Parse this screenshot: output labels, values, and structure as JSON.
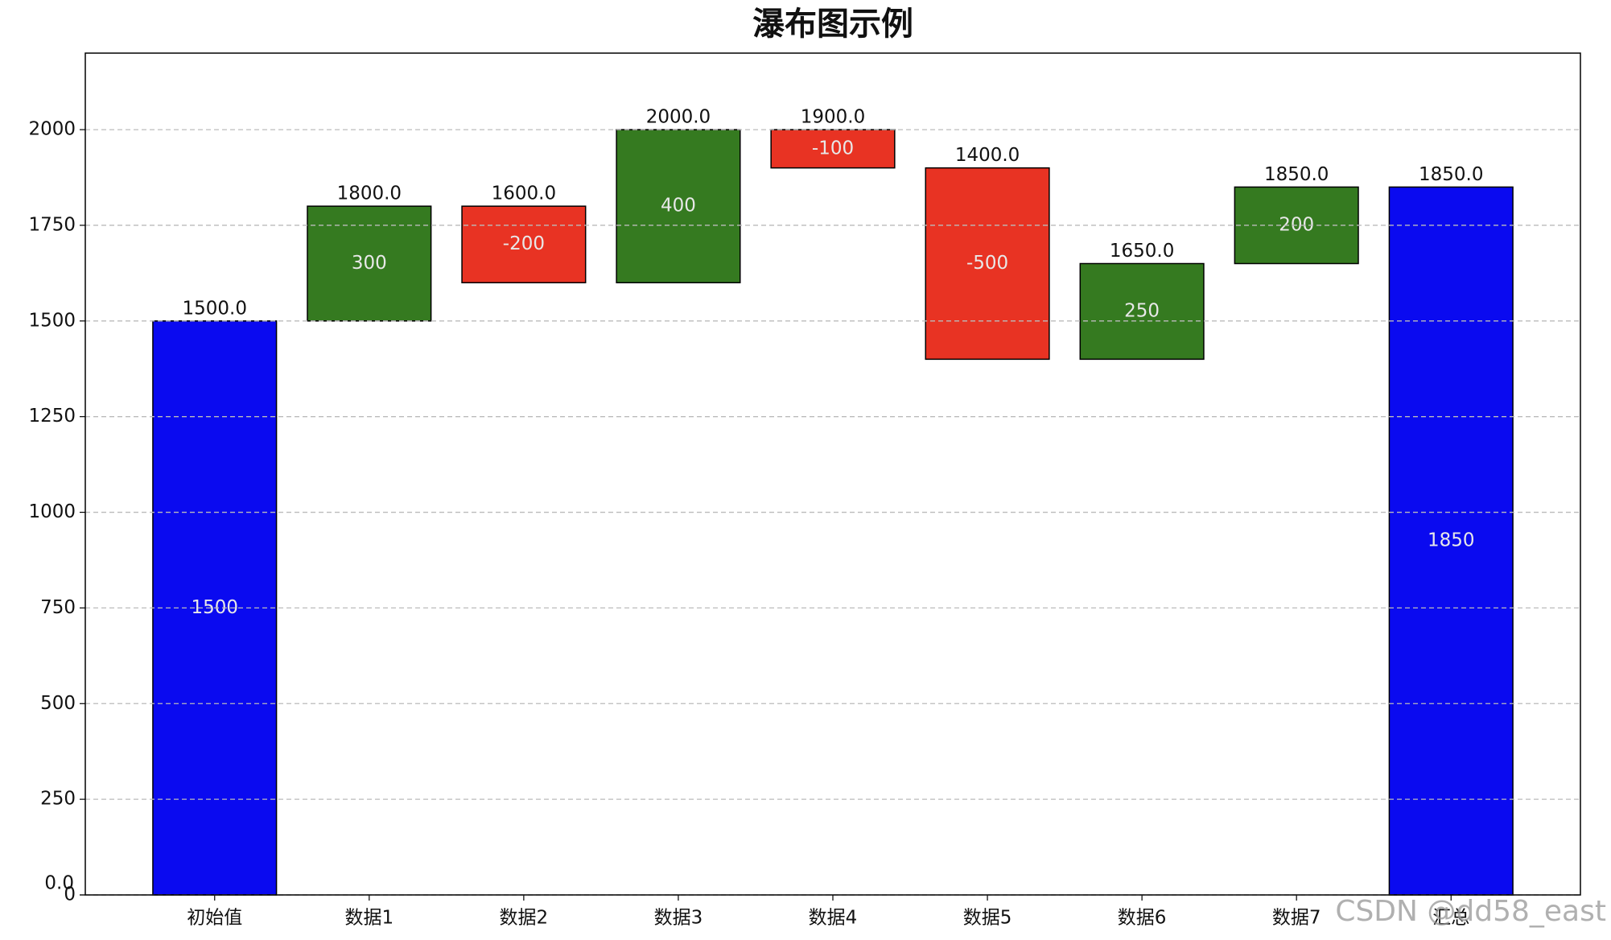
{
  "chart_data": {
    "type": "waterfall",
    "title": "瀑布图示例",
    "categories": [
      "初始值",
      "数据1",
      "数据2",
      "数据3",
      "数据4",
      "数据5",
      "数据6",
      "数据7",
      "汇总"
    ],
    "values": [
      1500,
      300,
      -200,
      400,
      -100,
      -500,
      250,
      200,
      1850
    ],
    "colors": [
      "#0a0af0",
      "#357a20",
      "#e83323",
      "#357a20",
      "#e83323",
      "#e83323",
      "#357a20",
      "#357a20",
      "#0a0af0"
    ],
    "top_labels": [
      "1500.0",
      "1800.0",
      "1600.0",
      "2000.0",
      "1900.0",
      "1400.0",
      "1650.0",
      "1850.0",
      "1850.0"
    ],
    "ylim": [
      0,
      2200
    ],
    "yticks": [
      0,
      {
        "value": 0,
        "label": "0.0"
      },
      250,
      500,
      750,
      1000,
      1250,
      1500,
      1750,
      2000
    ],
    "grid": true,
    "watermark": "CSDN @dd58_east"
  }
}
